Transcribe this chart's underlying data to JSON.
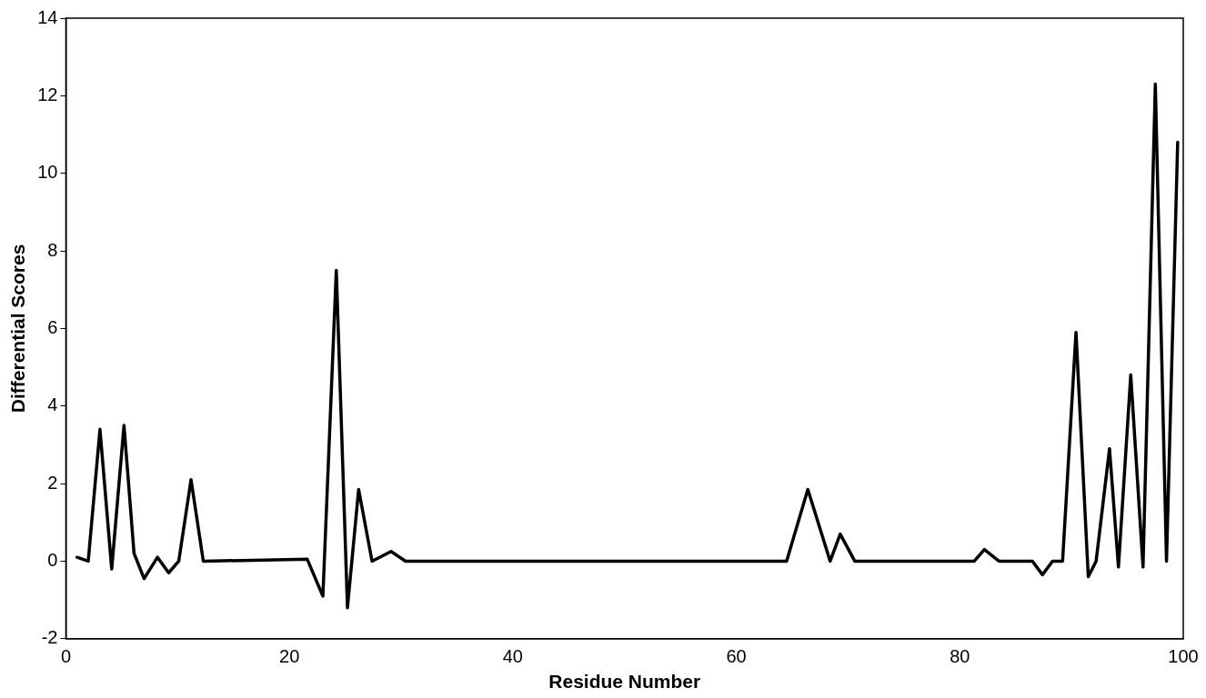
{
  "chart_data": {
    "type": "line",
    "xlabel": "Residue Number",
    "ylabel": "Differential Scores",
    "xlim": [
      0,
      100
    ],
    "xticks": [
      0,
      20,
      40,
      60,
      80,
      100
    ],
    "ylim": [
      -2,
      14
    ],
    "yticks": [
      -2,
      0,
      2,
      4,
      6,
      8,
      10,
      12,
      14
    ],
    "grid": false,
    "legend": false,
    "marker": "none",
    "line_style": "solid",
    "series": [
      {
        "color": "#000000",
        "x": [
          1,
          2,
          3.05,
          4.1,
          5.2,
          6.1,
          7,
          8.2,
          9.2,
          10.1,
          11.2,
          12.3,
          21.6,
          23,
          24.2,
          25.2,
          26.2,
          27.4,
          29.1,
          30.4,
          64.5,
          66.4,
          68.4,
          69.3,
          70.6,
          81.3,
          82.2,
          83.5,
          86.5,
          87.4,
          88.3,
          89.2,
          90.4,
          91.5,
          92.2,
          93.4,
          94.2,
          95.3,
          96.4,
          97.5,
          98.5,
          99.5
        ],
        "values": [
          0.1,
          0,
          3.4,
          -0.2,
          3.5,
          0.2,
          -0.45,
          0.1,
          -0.3,
          0,
          2.1,
          0,
          0.05,
          -0.9,
          7.5,
          -1.2,
          1.85,
          0,
          0.25,
          0,
          0,
          1.85,
          0,
          0.7,
          0,
          0,
          0.3,
          0,
          0,
          -0.35,
          0,
          0,
          5.9,
          -0.4,
          0,
          2.9,
          -0.15,
          4.8,
          -0.15,
          12.3,
          0,
          10.8
        ]
      }
    ]
  }
}
